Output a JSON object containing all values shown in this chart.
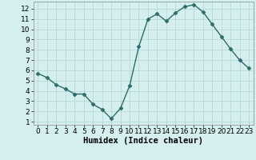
{
  "x": [
    0,
    1,
    2,
    3,
    4,
    5,
    6,
    7,
    8,
    9,
    10,
    11,
    12,
    13,
    14,
    15,
    16,
    17,
    18,
    19,
    20,
    21,
    22,
    23
  ],
  "y": [
    5.7,
    5.3,
    4.6,
    4.2,
    3.7,
    3.7,
    2.7,
    2.2,
    1.3,
    2.3,
    4.5,
    8.3,
    11.0,
    11.5,
    10.8,
    11.6,
    12.2,
    12.4,
    11.7,
    10.5,
    9.3,
    8.1,
    7.0,
    6.2
  ],
  "xlabel": "Humidex (Indice chaleur)",
  "xlim": [
    -0.5,
    23.5
  ],
  "ylim": [
    0.7,
    12.7
  ],
  "yticks": [
    1,
    2,
    3,
    4,
    5,
    6,
    7,
    8,
    9,
    10,
    11,
    12
  ],
  "xticks": [
    0,
    1,
    2,
    3,
    4,
    5,
    6,
    7,
    8,
    9,
    10,
    11,
    12,
    13,
    14,
    15,
    16,
    17,
    18,
    19,
    20,
    21,
    22,
    23
  ],
  "line_color": "#2e6b6b",
  "marker": "D",
  "marker_size": 2.5,
  "bg_color": "#d5efef",
  "grid_color": "#b8d8d8",
  "xlabel_fontsize": 7.5,
  "tick_fontsize": 6.5,
  "linewidth": 1.0
}
